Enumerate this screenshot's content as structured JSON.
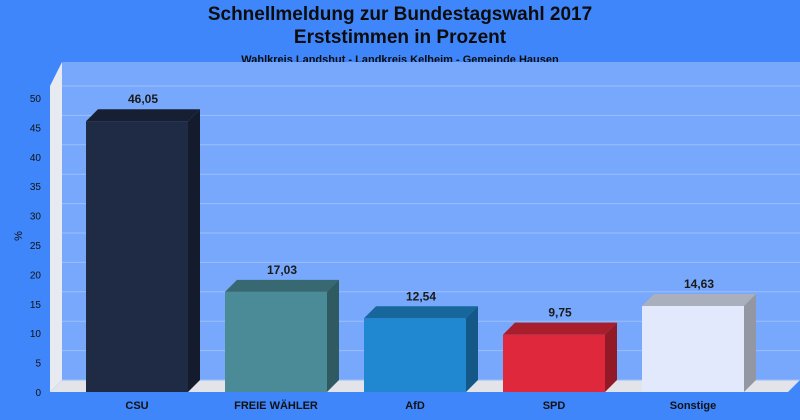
{
  "chart_data": {
    "type": "bar",
    "title": "Schnellmeldung zur Bundestagswahl 2017",
    "title2": "Erststimmen in Prozent",
    "subtitle": "Wahlkreis Landshut - Landkreis Kelheim - Gemeinde Hausen",
    "ylabel": "%",
    "xlabel": "",
    "ylim": [
      0,
      50
    ],
    "yticks": [
      0,
      5,
      10,
      15,
      20,
      25,
      30,
      35,
      40,
      45,
      50
    ],
    "categories": [
      "CSU",
      "FREIE WÄHLER",
      "AfD",
      "SPD",
      "Sonstige"
    ],
    "values": [
      46.05,
      17.03,
      12.54,
      9.75,
      14.63
    ],
    "value_labels": [
      "46,05",
      "17,03",
      "12,54",
      "9,75",
      "14,63"
    ],
    "colors": [
      "#1f2a44",
      "#4a8b97",
      "#1f88d0",
      "#e0283c",
      "#e2e9fd"
    ],
    "grid": true,
    "legend": "none"
  }
}
